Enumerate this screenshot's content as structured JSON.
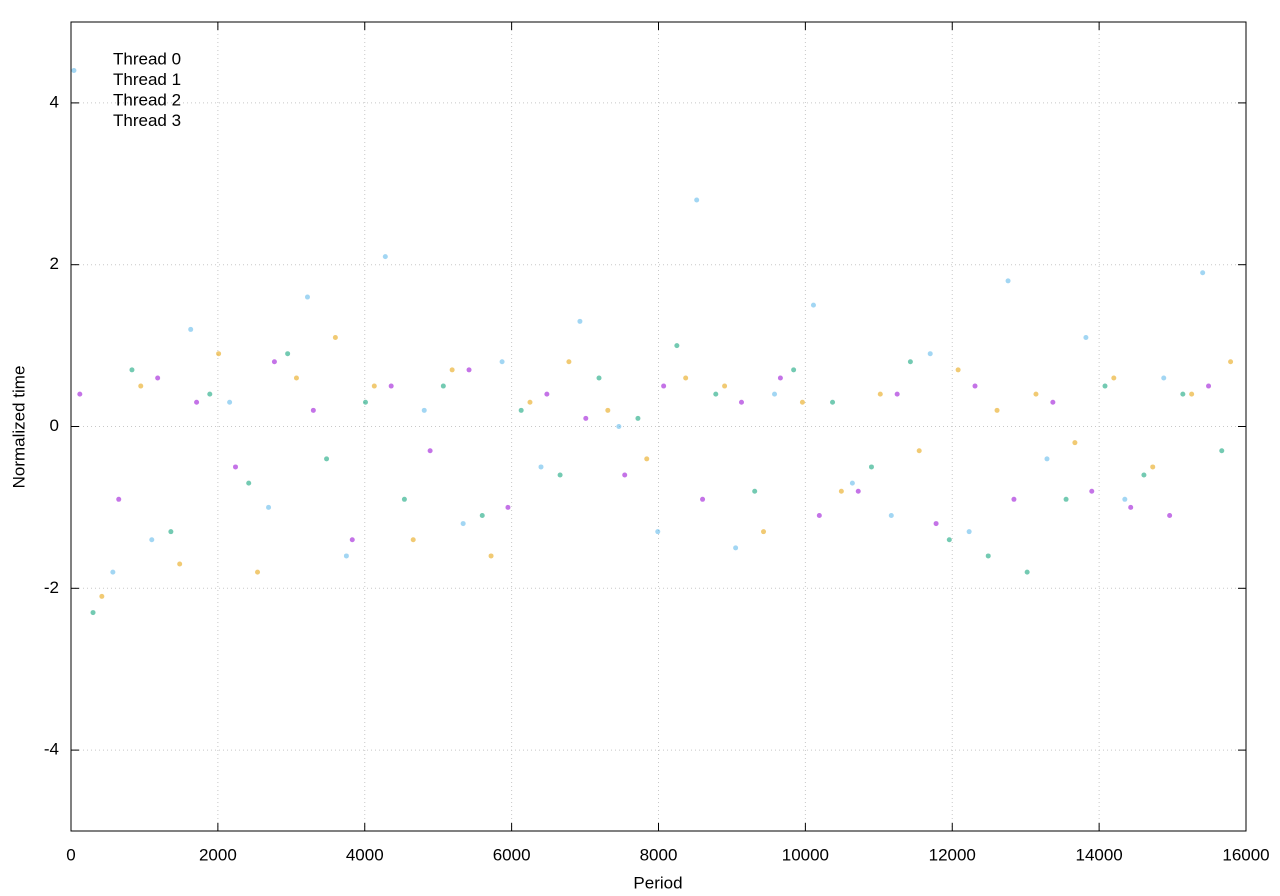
{
  "chart_data": {
    "type": "scatter",
    "xlabel": "Period",
    "ylabel": "Normalized time",
    "xlim": [
      0,
      16000
    ],
    "ylim": [
      -5,
      5
    ],
    "xticks": [
      0,
      2000,
      4000,
      6000,
      8000,
      10000,
      12000,
      14000,
      16000
    ],
    "yticks": [
      -4,
      -2,
      0,
      2,
      4
    ],
    "grid": true,
    "legend": "top-left",
    "series": [
      {
        "name": "Thread 0",
        "color": "#9400d3",
        "x": [
          120,
          650,
          1180,
          1710,
          2240,
          2770,
          3300,
          3830,
          4360,
          4890,
          5420,
          5950,
          6480,
          7010,
          7540,
          8070,
          8600,
          9130,
          9660,
          10190,
          10720,
          11250,
          11780,
          12310,
          12840,
          13370,
          13900,
          14430,
          14960,
          15490
        ],
        "values": [
          0.4,
          -0.9,
          0.6,
          0.3,
          -0.5,
          0.8,
          0.2,
          -1.4,
          0.5,
          -0.3,
          0.7,
          -1.0,
          0.4,
          0.1,
          -0.6,
          0.5,
          -0.9,
          0.3,
          0.6,
          -1.1,
          -0.8,
          0.4,
          -1.2,
          0.5,
          -0.9,
          0.3,
          -0.8,
          -1.0,
          -1.1,
          0.5
        ]
      },
      {
        "name": "Thread 1",
        "color": "#009e73",
        "x": [
          300,
          830,
          1360,
          1890,
          2420,
          2950,
          3480,
          4010,
          4540,
          5070,
          5600,
          6130,
          6660,
          7190,
          7720,
          8250,
          8780,
          9310,
          9840,
          10370,
          10900,
          11430,
          11960,
          12490,
          13020,
          13550,
          14080,
          14610,
          15140,
          15670
        ],
        "values": [
          -2.3,
          0.7,
          -1.3,
          0.4,
          -0.7,
          0.9,
          -0.4,
          0.3,
          -0.9,
          0.5,
          -1.1,
          0.2,
          -0.6,
          0.6,
          0.1,
          1.0,
          0.4,
          -0.8,
          0.7,
          0.3,
          -0.5,
          0.8,
          -1.4,
          -1.6,
          -1.8,
          -0.9,
          0.5,
          -0.6,
          0.4,
          -0.3
        ]
      },
      {
        "name": "Thread 2",
        "color": "#56b4e9",
        "x": [
          40,
          570,
          1100,
          1630,
          2160,
          2690,
          3220,
          3750,
          4280,
          4810,
          5340,
          5870,
          6400,
          6930,
          7460,
          7990,
          8520,
          9050,
          9580,
          10110,
          10640,
          11170,
          11700,
          12230,
          12760,
          13290,
          13820,
          14350,
          14880,
          15410
        ],
        "values": [
          4.4,
          -1.8,
          -1.4,
          1.2,
          0.3,
          -1.0,
          1.6,
          -1.6,
          2.1,
          0.2,
          -1.2,
          0.8,
          -0.5,
          1.3,
          0.0,
          -1.3,
          2.8,
          -1.5,
          0.4,
          1.5,
          -0.7,
          -1.1,
          0.9,
          -1.3,
          1.8,
          -0.4,
          1.1,
          -0.9,
          0.6,
          1.9
        ]
      },
      {
        "name": "Thread 3",
        "color": "#e69f00",
        "x": [
          420,
          950,
          1480,
          2010,
          2540,
          3070,
          3600,
          4130,
          4660,
          5190,
          5720,
          6250,
          6780,
          7310,
          7840,
          8370,
          8900,
          9430,
          9960,
          10490,
          11020,
          11550,
          12080,
          12610,
          13140,
          13670,
          14200,
          14730,
          15260,
          15790
        ],
        "values": [
          -2.1,
          0.5,
          -1.7,
          0.9,
          -1.8,
          0.6,
          1.1,
          0.5,
          -1.4,
          0.7,
          -1.6,
          0.3,
          0.8,
          0.2,
          -0.4,
          0.6,
          0.5,
          -1.3,
          0.3,
          -0.8,
          0.4,
          -0.3,
          0.7,
          0.2,
          0.4,
          -0.2,
          0.6,
          -0.5,
          0.4,
          0.8
        ]
      }
    ]
  }
}
